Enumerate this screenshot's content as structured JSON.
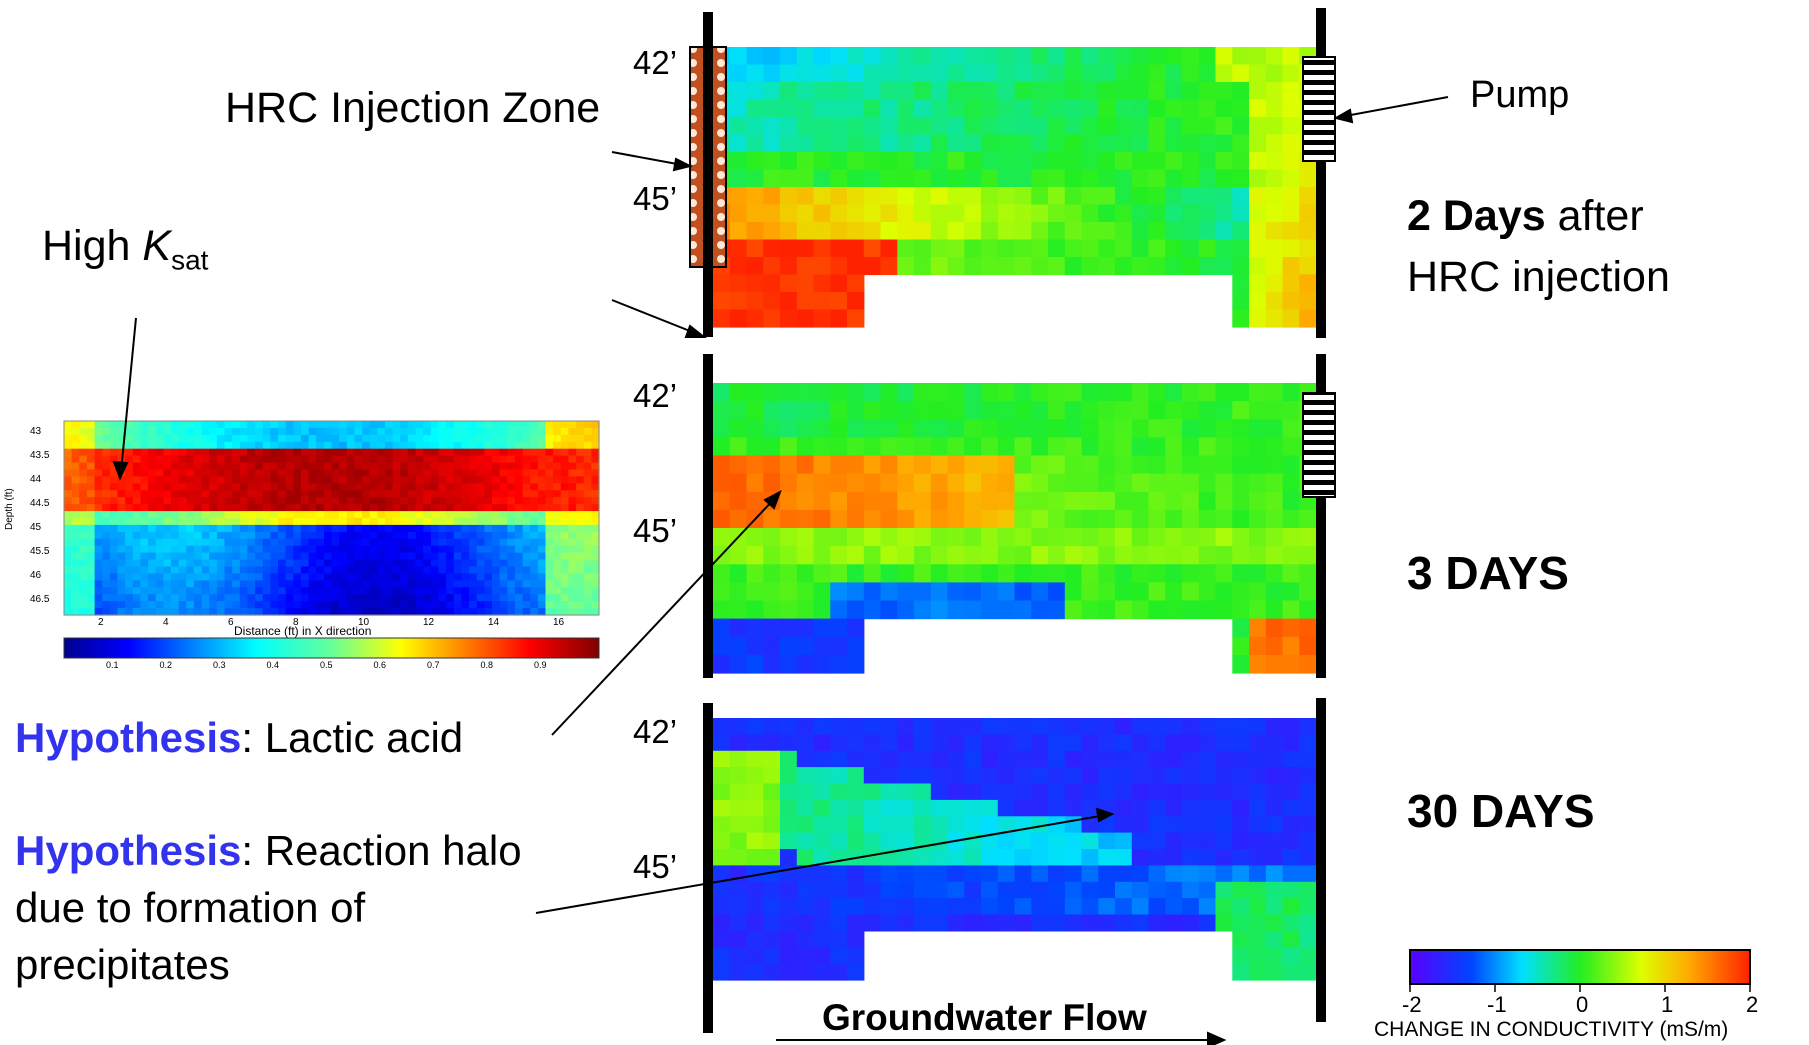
{
  "labels": {
    "hrc_zone": "HRC Injection Zone",
    "pump": "Pump",
    "high_ksat_prefix": "High ",
    "high_ksat_k": "K",
    "high_ksat_sub": "sat",
    "depth_42": "42’",
    "depth_45": "45’",
    "panel1_bold": "2 Days",
    "panel1_rest": " after",
    "panel1_line2": "HRC injection",
    "panel2": "3 DAYS",
    "panel3": "30 DAYS",
    "hyp_word": "Hypothesis",
    "hyp1_rest": ": Lactic acid",
    "hyp2_rest": ": Reaction halo",
    "hyp2_line2": "due to formation of",
    "hyp2_line3": "precipitates",
    "groundwater_flow": "Groundwater Flow"
  },
  "inset": {
    "y_axis_label": "Depth (ft)",
    "x_axis_label": "Distance (ft) in X direction",
    "y_ticks": [
      "43",
      "43.5",
      "44",
      "44.5",
      "45",
      "45.5",
      "46",
      "46.5"
    ],
    "x_ticks": [
      "2",
      "4",
      "6",
      "8",
      "10",
      "12",
      "14",
      "16"
    ],
    "colorbar_ticks": [
      "0.1",
      "0.2",
      "0.3",
      "0.4",
      "0.5",
      "0.6",
      "0.7",
      "0.8",
      "0.9"
    ]
  },
  "legend": {
    "ticks": [
      "-2",
      "-1",
      "0",
      "1",
      "2"
    ],
    "title": "CHANGE IN CONDUCTIVITY (mS/m)",
    "range": [
      -2,
      2
    ]
  },
  "colors": {
    "hypothesis_blue": "#3333ee",
    "hrc_zone_brown": "#c0501f",
    "panel3_background": "#4410f0"
  }
}
